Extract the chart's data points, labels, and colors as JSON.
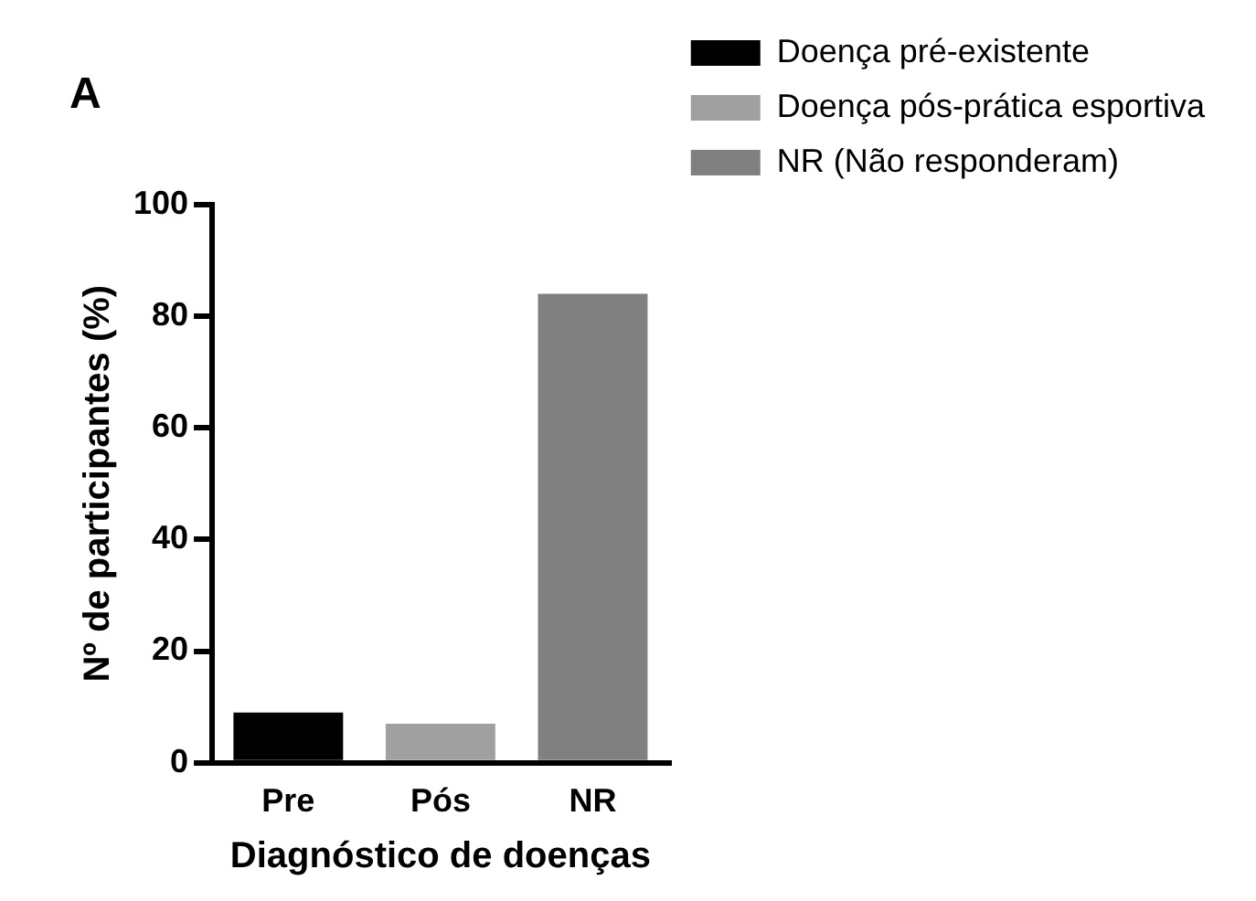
{
  "chart_data": {
    "type": "bar",
    "xlabel": "Diagnóstico de doenças",
    "ylabel": "Nº de participantes (%)",
    "annotations": [
      "A"
    ],
    "categories": [
      "Pre",
      "Pós",
      "NR"
    ],
    "series": [
      {
        "name": "Doença pré-existente",
        "color": "#000000",
        "values": [
          9,
          null,
          null
        ]
      },
      {
        "name": "Doença pós-prática esportiva",
        "color": "#a0a0a0",
        "values": [
          null,
          7,
          null
        ]
      },
      {
        "name": "NR (Não responderam)",
        "color": "#808080",
        "values": [
          null,
          null,
          84
        ]
      }
    ],
    "ylim": [
      0,
      100
    ],
    "yticks": [
      0,
      20,
      40,
      60,
      80,
      100
    ],
    "grid": false,
    "legend": "top right"
  }
}
